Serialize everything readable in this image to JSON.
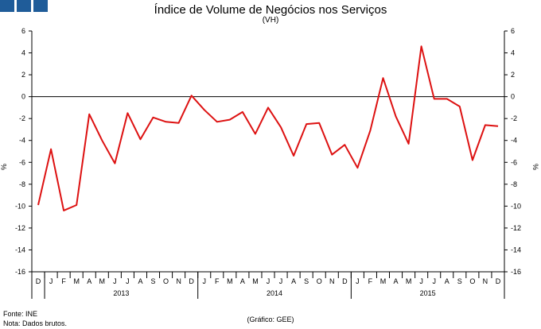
{
  "chart_data": {
    "type": "line",
    "title": "Índice de Volume de Negócios nos Serviços",
    "subtitle": "(VH)",
    "ylabel_left": "%",
    "ylabel_right": "%",
    "ylim": [
      -16,
      6
    ],
    "yticks": [
      6,
      4,
      2,
      0,
      -2,
      -4,
      -6,
      -8,
      -10,
      -12,
      -14,
      -16
    ],
    "grid": false,
    "series_color": "#dd1111",
    "months": [
      "D",
      "J",
      "F",
      "M",
      "A",
      "M",
      "J",
      "J",
      "A",
      "S",
      "O",
      "N",
      "D",
      "J",
      "F",
      "M",
      "A",
      "M",
      "J",
      "J",
      "A",
      "S",
      "O",
      "N",
      "D",
      "J",
      "F",
      "M",
      "A",
      "M",
      "J",
      "J",
      "A",
      "S",
      "O",
      "N",
      "D"
    ],
    "years": [
      "2013",
      "2014",
      "2015"
    ],
    "series": [
      {
        "values": [
          -9.9,
          -4.8,
          -10.4,
          -9.9,
          -1.6,
          -4.0,
          -6.1,
          -1.5,
          -3.9,
          -1.9,
          -2.3,
          -2.4,
          0.1,
          -1.2,
          -2.3,
          -2.1,
          -1.4,
          -3.4,
          -1.0,
          -2.8,
          -5.4,
          -2.5,
          -2.4,
          -5.3,
          -4.4,
          -6.5,
          -3.1,
          1.7,
          -1.8,
          -4.3,
          4.6,
          -0.2,
          -0.2,
          -0.9,
          -5.8,
          -2.6,
          -2.7
        ]
      }
    ]
  },
  "footer": {
    "source": "Fonte: INE",
    "note": "Nota: Dados brutos.",
    "credit": "(Gráfico: GEE)"
  }
}
